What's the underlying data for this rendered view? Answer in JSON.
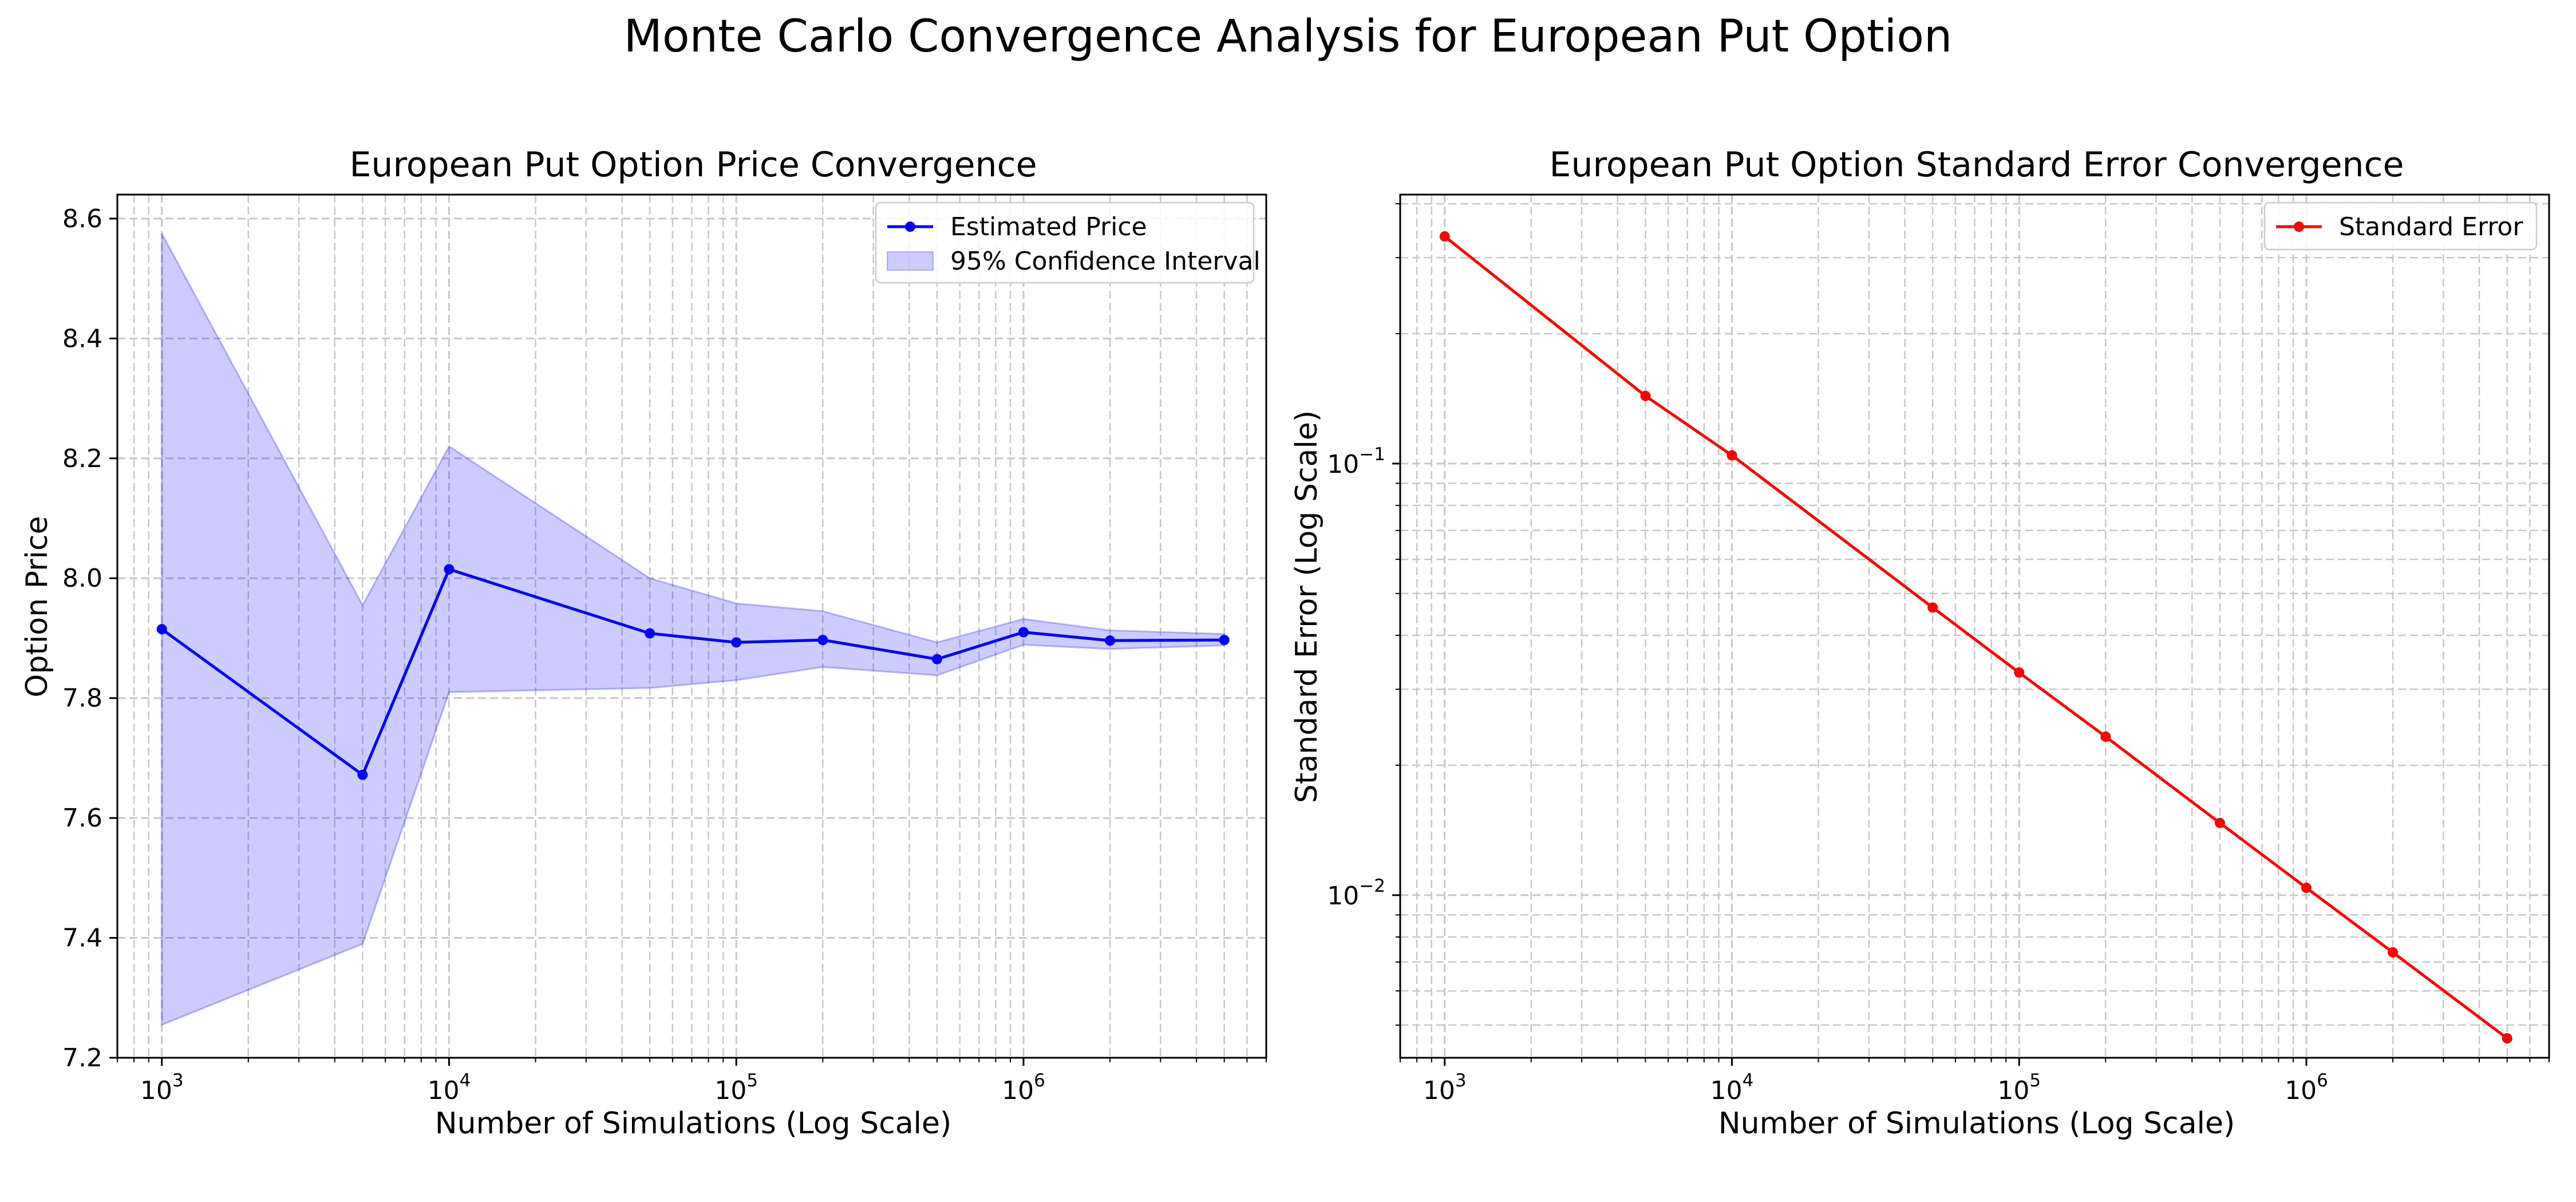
{
  "figure": {
    "title": "Monte Carlo Convergence Analysis for European Put Option"
  },
  "chart_data": [
    {
      "type": "line",
      "title": "European Put Option Price Convergence",
      "xlabel": "Number of Simulations (Log Scale)",
      "ylabel": "Option Price",
      "x_scale": "log",
      "x": [
        1000,
        5000,
        10000,
        50000,
        100000,
        200000,
        500000,
        1000000,
        2000000,
        5000000
      ],
      "xlim": [
        700,
        7000000
      ],
      "ylim": [
        7.2,
        8.64
      ],
      "x_ticks": [
        1000,
        10000,
        100000,
        1000000
      ],
      "x_tick_labels": [
        {
          "base": "10",
          "exp": "3"
        },
        {
          "base": "10",
          "exp": "4"
        },
        {
          "base": "10",
          "exp": "5"
        },
        {
          "base": "10",
          "exp": "6"
        }
      ],
      "y_ticks": [
        7.2,
        7.4,
        7.6,
        7.8,
        8.0,
        8.2,
        8.4,
        8.6
      ],
      "y_tick_labels": [
        "7.2",
        "7.4",
        "7.6",
        "7.8",
        "8.0",
        "8.2",
        "8.4",
        "8.6"
      ],
      "grid": true,
      "legend_position": "upper right",
      "series": [
        {
          "name": "Estimated Price",
          "color": "#0000ff",
          "marker": "circle",
          "values": [
            7.915,
            7.672,
            8.015,
            7.908,
            7.893,
            7.897,
            7.865,
            7.91,
            7.896,
            7.897
          ]
        }
      ],
      "band": {
        "name": "95% Confidence Interval",
        "color": "#0000ff",
        "opacity": 0.2,
        "lower": [
          7.255,
          7.39,
          7.81,
          7.817,
          7.83,
          7.852,
          7.838,
          7.889,
          7.882,
          7.888
        ],
        "upper": [
          8.575,
          7.955,
          8.22,
          8.0,
          7.958,
          7.945,
          7.893,
          7.932,
          7.913,
          7.907
        ]
      }
    },
    {
      "type": "line",
      "title": "European Put Option Standard Error Convergence",
      "xlabel": "Number of Simulations (Log Scale)",
      "ylabel": "Standard Error (Log Scale)",
      "x_scale": "log",
      "y_scale": "log",
      "x": [
        1000,
        5000,
        10000,
        50000,
        100000,
        200000,
        500000,
        1000000,
        2000000,
        5000000
      ],
      "xlim": [
        700,
        7000000
      ],
      "ylim": [
        0.0042,
        0.42
      ],
      "x_ticks": [
        1000,
        10000,
        100000,
        1000000
      ],
      "x_tick_labels": [
        {
          "base": "10",
          "exp": "3"
        },
        {
          "base": "10",
          "exp": "4"
        },
        {
          "base": "10",
          "exp": "5"
        },
        {
          "base": "10",
          "exp": "6"
        }
      ],
      "y_ticks": [
        0.01,
        0.1
      ],
      "y_tick_labels": [
        {
          "base": "10",
          "exp": "−2"
        },
        {
          "base": "10",
          "exp": "−1"
        }
      ],
      "grid": true,
      "legend_position": "upper right",
      "series": [
        {
          "name": "Standard Error",
          "color": "#ff0000",
          "marker": "circle",
          "values": [
            0.336,
            0.1435,
            0.1045,
            0.0464,
            0.0328,
            0.0233,
            0.0147,
            0.0104,
            0.00737,
            0.00466
          ]
        }
      ]
    }
  ]
}
